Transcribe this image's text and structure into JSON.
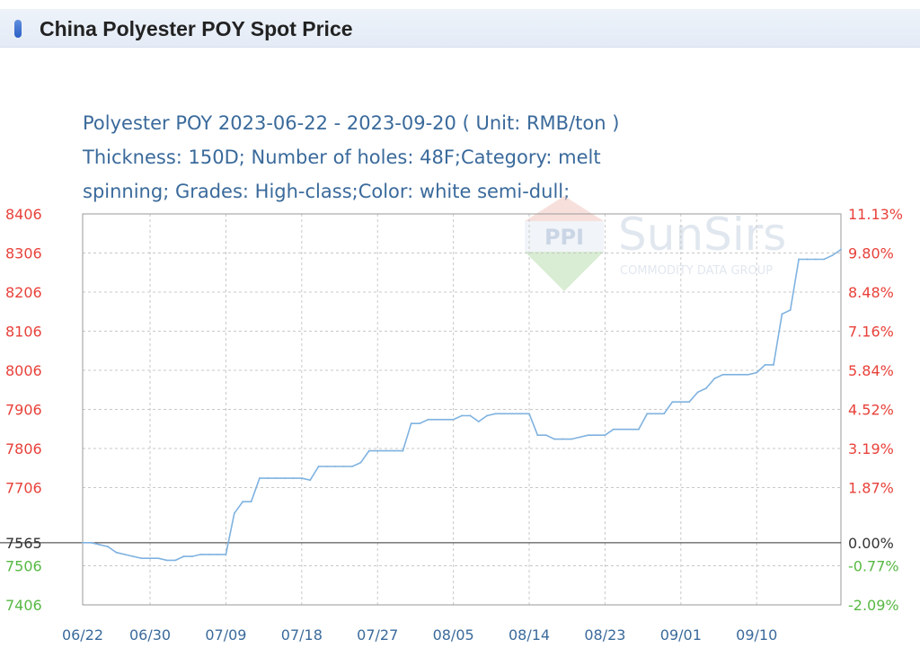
{
  "header": {
    "title": "China Polyester POY Spot Price"
  },
  "subtitle": {
    "line1": "Polyester POY 2023-06-22 - 2023-09-20     ( Unit: RMB/ton )",
    "line2": "Thickness: 150D; Number of holes: 48F;Category: melt",
    "line3": "spinning; Grades: High-class;Color: white semi-dull;"
  },
  "watermark": {
    "brand": "SunSirs",
    "tagline": "COMMODITY DATA GROUP",
    "logo_text": "PPI"
  },
  "colors": {
    "line": "#7fb2e0",
    "above_base": "#e8413a",
    "below_base": "#57b843",
    "base": "#333333",
    "axis_text": "#3a6a9b"
  },
  "chart_data": {
    "type": "line",
    "title": "Polyester POY 2023-06-22 - 2023-09-20",
    "unit": "( Unit: RMB/ton )",
    "base_value": 7565,
    "ylim": [
      7406,
      8406
    ],
    "y_ticks_left": [
      "8406",
      "8306",
      "8206",
      "8106",
      "8006",
      "7906",
      "7806",
      "7706",
      "7565",
      "7506",
      "7406"
    ],
    "y_ticks_right": [
      "11.13%",
      "9.80%",
      "8.48%",
      "7.16%",
      "5.84%",
      "4.52%",
      "3.19%",
      "1.87%",
      "0.00%",
      "-0.77%",
      "-2.09%"
    ],
    "x_ticks": [
      "06/22",
      "06/30",
      "07/09",
      "07/18",
      "07/27",
      "08/05",
      "08/14",
      "08/23",
      "09/01",
      "09/10"
    ],
    "grid": true,
    "series": [
      {
        "x": [
          "06/22",
          "06/23",
          "06/24",
          "06/25",
          "06/26",
          "06/27",
          "06/28",
          "06/29",
          "06/30",
          "07/01",
          "07/02",
          "07/03",
          "07/04",
          "07/05",
          "07/06",
          "07/07",
          "07/08",
          "07/09",
          "07/10",
          "07/11",
          "07/12",
          "07/13",
          "07/14",
          "07/15",
          "07/16",
          "07/17",
          "07/18",
          "07/19",
          "07/20",
          "07/21",
          "07/22",
          "07/23",
          "07/24",
          "07/25",
          "07/26",
          "07/27",
          "07/28",
          "07/29",
          "07/30",
          "07/31",
          "08/01",
          "08/02",
          "08/03",
          "08/04",
          "08/05",
          "08/06",
          "08/07",
          "08/08",
          "08/09",
          "08/10",
          "08/11",
          "08/12",
          "08/13",
          "08/14",
          "08/15",
          "08/16",
          "08/17",
          "08/18",
          "08/19",
          "08/20",
          "08/21",
          "08/22",
          "08/23",
          "08/24",
          "08/25",
          "08/26",
          "08/27",
          "08/28",
          "08/29",
          "08/30",
          "08/31",
          "09/01",
          "09/02",
          "09/03",
          "09/04",
          "09/05",
          "09/06",
          "09/07",
          "09/08",
          "09/09",
          "09/10",
          "09/11",
          "09/12",
          "09/13",
          "09/14",
          "09/15",
          "09/16",
          "09/17",
          "09/18",
          "09/19",
          "09/20"
        ],
        "values": [
          7565,
          7565,
          7560,
          7555,
          7540,
          7535,
          7530,
          7525,
          7525,
          7525,
          7520,
          7520,
          7530,
          7530,
          7535,
          7535,
          7535,
          7535,
          7640,
          7670,
          7670,
          7730,
          7730,
          7730,
          7730,
          7730,
          7730,
          7725,
          7760,
          7760,
          7760,
          7760,
          7760,
          7770,
          7800,
          7800,
          7800,
          7800,
          7800,
          7870,
          7870,
          7880,
          7880,
          7880,
          7880,
          7890,
          7890,
          7875,
          7890,
          7895,
          7895,
          7895,
          7895,
          7895,
          7840,
          7840,
          7830,
          7830,
          7830,
          7835,
          7840,
          7840,
          7840,
          7855,
          7855,
          7855,
          7855,
          7895,
          7895,
          7895,
          7925,
          7925,
          7925,
          7950,
          7960,
          7985,
          7995,
          7995,
          7995,
          7995,
          8000,
          8020,
          8020,
          8150,
          8160,
          8290,
          8290,
          8290,
          8290,
          8300,
          8315
        ]
      }
    ]
  }
}
